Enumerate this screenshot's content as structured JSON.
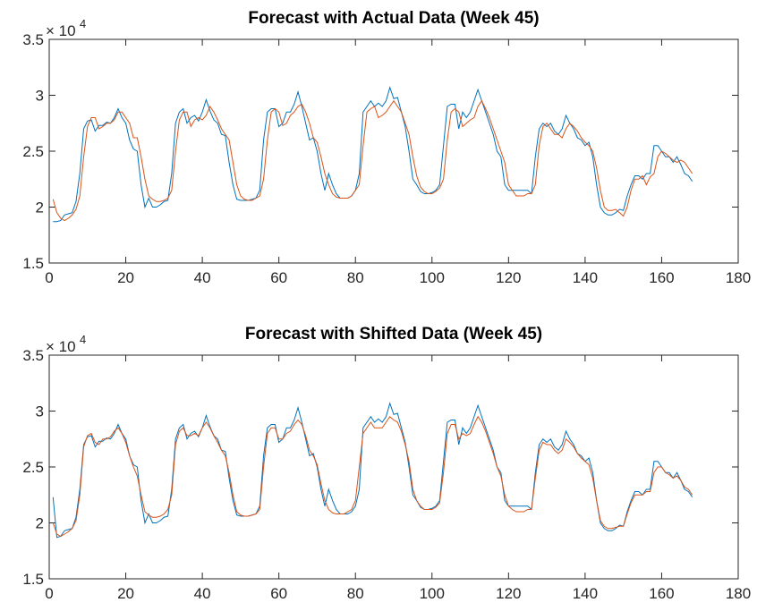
{
  "chart_data": [
    {
      "type": "line",
      "title": "Forecast with Actual Data (Week 45)",
      "y_exponent": {
        "base": "× 10",
        "power": "4"
      },
      "x": [
        1,
        2,
        3,
        4,
        5,
        6,
        7,
        8,
        9,
        10,
        11,
        12,
        13,
        14,
        15,
        16,
        17,
        18,
        19,
        20,
        21,
        22,
        23,
        24,
        25,
        26,
        27,
        28,
        29,
        30,
        31,
        32,
        33,
        34,
        35,
        36,
        37,
        38,
        39,
        40,
        41,
        42,
        43,
        44,
        45,
        46,
        47,
        48,
        49,
        50,
        51,
        52,
        53,
        54,
        55,
        56,
        57,
        58,
        59,
        60,
        61,
        62,
        63,
        64,
        65,
        66,
        67,
        68,
        69,
        70,
        71,
        72,
        73,
        74,
        75,
        76,
        77,
        78,
        79,
        80,
        81,
        82,
        83,
        84,
        85,
        86,
        87,
        88,
        89,
        90,
        91,
        92,
        93,
        94,
        95,
        96,
        97,
        98,
        99,
        100,
        101,
        102,
        103,
        104,
        105,
        106,
        107,
        108,
        109,
        110,
        111,
        112,
        113,
        114,
        115,
        116,
        117,
        118,
        119,
        120,
        121,
        122,
        123,
        124,
        125,
        126,
        127,
        128,
        129,
        130,
        131,
        132,
        133,
        134,
        135,
        136,
        137,
        138,
        139,
        140,
        141,
        142,
        143,
        144,
        145,
        146,
        147,
        148,
        149,
        150,
        151,
        152,
        153,
        154,
        155,
        156,
        157,
        158,
        159,
        160,
        161,
        162,
        163,
        164,
        165,
        166,
        167,
        168
      ],
      "series": [
        {
          "color": "#0072bd",
          "values": [
            1.87,
            1.87,
            1.88,
            1.93,
            1.94,
            1.95,
            2.05,
            2.3,
            2.7,
            2.77,
            2.78,
            2.68,
            2.73,
            2.73,
            2.76,
            2.75,
            2.8,
            2.88,
            2.8,
            2.75,
            2.6,
            2.52,
            2.5,
            2.2,
            2.0,
            2.08,
            2.0,
            2.0,
            2.02,
            2.05,
            2.06,
            2.3,
            2.75,
            2.85,
            2.88,
            2.75,
            2.8,
            2.82,
            2.77,
            2.85,
            2.96,
            2.86,
            2.78,
            2.75,
            2.65,
            2.64,
            2.4,
            2.2,
            2.07,
            2.06,
            2.06,
            2.06,
            2.07,
            2.08,
            2.15,
            2.6,
            2.85,
            2.88,
            2.88,
            2.72,
            2.75,
            2.85,
            2.85,
            2.92,
            3.03,
            2.9,
            2.75,
            2.6,
            2.62,
            2.5,
            2.3,
            2.15,
            2.3,
            2.2,
            2.12,
            2.08,
            2.08,
            2.08,
            2.1,
            2.15,
            2.3,
            2.85,
            2.9,
            2.95,
            2.9,
            2.93,
            2.9,
            2.95,
            3.07,
            2.97,
            2.98,
            2.85,
            2.72,
            2.5,
            2.25,
            2.2,
            2.14,
            2.12,
            2.12,
            2.13,
            2.15,
            2.2,
            2.55,
            2.9,
            2.92,
            2.92,
            2.7,
            2.85,
            2.8,
            2.85,
            2.95,
            3.05,
            2.95,
            2.85,
            2.75,
            2.65,
            2.5,
            2.45,
            2.2,
            2.15,
            2.15,
            2.15,
            2.15,
            2.15,
            2.15,
            2.12,
            2.45,
            2.7,
            2.75,
            2.72,
            2.75,
            2.68,
            2.65,
            2.7,
            2.82,
            2.75,
            2.7,
            2.62,
            2.6,
            2.55,
            2.58,
            2.45,
            2.2,
            2.0,
            1.95,
            1.93,
            1.93,
            1.95,
            1.98,
            1.97,
            2.1,
            2.2,
            2.28,
            2.28,
            2.25,
            2.3,
            2.3,
            2.55,
            2.55,
            2.5,
            2.45,
            2.45,
            2.4,
            2.45,
            2.38,
            2.3,
            2.28,
            2.23
          ]
        },
        {
          "color": "#d95319",
          "values": [
            2.07,
            1.95,
            1.9,
            1.88,
            1.9,
            1.93,
            1.98,
            2.1,
            2.45,
            2.72,
            2.8,
            2.8,
            2.7,
            2.72,
            2.75,
            2.75,
            2.78,
            2.85,
            2.85,
            2.8,
            2.75,
            2.62,
            2.62,
            2.45,
            2.25,
            2.1,
            2.07,
            2.05,
            2.05,
            2.06,
            2.08,
            2.15,
            2.5,
            2.78,
            2.85,
            2.85,
            2.72,
            2.78,
            2.8,
            2.78,
            2.82,
            2.9,
            2.85,
            2.78,
            2.7,
            2.65,
            2.6,
            2.4,
            2.2,
            2.1,
            2.07,
            2.06,
            2.06,
            2.08,
            2.1,
            2.25,
            2.6,
            2.85,
            2.88,
            2.85,
            2.73,
            2.75,
            2.82,
            2.85,
            2.9,
            2.92,
            2.85,
            2.75,
            2.62,
            2.58,
            2.45,
            2.3,
            2.2,
            2.12,
            2.09,
            2.08,
            2.08,
            2.08,
            2.1,
            2.15,
            2.2,
            2.55,
            2.85,
            2.88,
            2.9,
            2.8,
            2.82,
            2.85,
            2.9,
            2.95,
            2.9,
            2.85,
            2.75,
            2.65,
            2.45,
            2.28,
            2.18,
            2.14,
            2.12,
            2.12,
            2.14,
            2.17,
            2.25,
            2.6,
            2.85,
            2.88,
            2.85,
            2.72,
            2.75,
            2.78,
            2.8,
            2.9,
            2.95,
            2.88,
            2.8,
            2.7,
            2.6,
            2.5,
            2.4,
            2.2,
            2.15,
            2.1,
            2.1,
            2.1,
            2.12,
            2.12,
            2.2,
            2.55,
            2.72,
            2.75,
            2.7,
            2.65,
            2.65,
            2.62,
            2.7,
            2.75,
            2.72,
            2.68,
            2.62,
            2.58,
            2.55,
            2.5,
            2.35,
            2.15,
            2.0,
            1.97,
            1.97,
            1.98,
            1.95,
            1.92,
            2.0,
            2.15,
            2.25,
            2.25,
            2.28,
            2.2,
            2.27,
            2.3,
            2.45,
            2.5,
            2.48,
            2.45,
            2.42,
            2.4,
            2.42,
            2.4,
            2.35,
            2.3
          ]
        }
      ],
      "xlim": [
        0,
        180
      ],
      "xticks": [
        0,
        20,
        40,
        60,
        80,
        100,
        120,
        140,
        160,
        180
      ],
      "ylim": [
        1.5,
        3.5
      ],
      "yticks": [
        1.5,
        2,
        2.5,
        3,
        3.5
      ],
      "grid": false
    },
    {
      "type": "line",
      "title": "Forecast with Shifted Data (Week 45)",
      "y_exponent": {
        "base": "× 10",
        "power": "4"
      },
      "x": [
        1,
        2,
        3,
        4,
        5,
        6,
        7,
        8,
        9,
        10,
        11,
        12,
        13,
        14,
        15,
        16,
        17,
        18,
        19,
        20,
        21,
        22,
        23,
        24,
        25,
        26,
        27,
        28,
        29,
        30,
        31,
        32,
        33,
        34,
        35,
        36,
        37,
        38,
        39,
        40,
        41,
        42,
        43,
        44,
        45,
        46,
        47,
        48,
        49,
        50,
        51,
        52,
        53,
        54,
        55,
        56,
        57,
        58,
        59,
        60,
        61,
        62,
        63,
        64,
        65,
        66,
        67,
        68,
        69,
        70,
        71,
        72,
        73,
        74,
        75,
        76,
        77,
        78,
        79,
        80,
        81,
        82,
        83,
        84,
        85,
        86,
        87,
        88,
        89,
        90,
        91,
        92,
        93,
        94,
        95,
        96,
        97,
        98,
        99,
        100,
        101,
        102,
        103,
        104,
        105,
        106,
        107,
        108,
        109,
        110,
        111,
        112,
        113,
        114,
        115,
        116,
        117,
        118,
        119,
        120,
        121,
        122,
        123,
        124,
        125,
        126,
        127,
        128,
        129,
        130,
        131,
        132,
        133,
        134,
        135,
        136,
        137,
        138,
        139,
        140,
        141,
        142,
        143,
        144,
        145,
        146,
        147,
        148,
        149,
        150,
        151,
        152,
        153,
        154,
        155,
        156,
        157,
        158,
        159,
        160,
        161,
        162,
        163,
        164,
        165,
        166,
        167,
        168
      ],
      "series": [
        {
          "color": "#0072bd",
          "values": [
            2.23,
            1.87,
            1.88,
            1.93,
            1.94,
            1.95,
            2.05,
            2.3,
            2.7,
            2.77,
            2.78,
            2.68,
            2.73,
            2.73,
            2.76,
            2.75,
            2.8,
            2.88,
            2.8,
            2.75,
            2.6,
            2.52,
            2.5,
            2.2,
            2.0,
            2.08,
            2.0,
            2.0,
            2.02,
            2.05,
            2.06,
            2.3,
            2.75,
            2.85,
            2.88,
            2.75,
            2.8,
            2.82,
            2.77,
            2.85,
            2.96,
            2.86,
            2.78,
            2.75,
            2.65,
            2.64,
            2.4,
            2.2,
            2.07,
            2.06,
            2.06,
            2.06,
            2.07,
            2.08,
            2.15,
            2.6,
            2.85,
            2.88,
            2.88,
            2.72,
            2.75,
            2.85,
            2.85,
            2.92,
            3.03,
            2.9,
            2.75,
            2.6,
            2.62,
            2.5,
            2.3,
            2.15,
            2.3,
            2.2,
            2.12,
            2.08,
            2.08,
            2.08,
            2.1,
            2.15,
            2.3,
            2.85,
            2.9,
            2.95,
            2.9,
            2.93,
            2.9,
            2.95,
            3.07,
            2.97,
            2.98,
            2.85,
            2.72,
            2.5,
            2.25,
            2.2,
            2.14,
            2.12,
            2.12,
            2.13,
            2.15,
            2.2,
            2.55,
            2.9,
            2.92,
            2.92,
            2.7,
            2.85,
            2.8,
            2.85,
            2.95,
            3.05,
            2.95,
            2.85,
            2.75,
            2.65,
            2.5,
            2.45,
            2.2,
            2.15,
            2.15,
            2.15,
            2.15,
            2.15,
            2.15,
            2.12,
            2.45,
            2.7,
            2.75,
            2.72,
            2.75,
            2.68,
            2.65,
            2.7,
            2.82,
            2.75,
            2.7,
            2.62,
            2.6,
            2.55,
            2.58,
            2.45,
            2.2,
            2.0,
            1.95,
            1.93,
            1.93,
            1.95,
            1.98,
            1.97,
            2.1,
            2.2,
            2.28,
            2.28,
            2.25,
            2.3,
            2.3,
            2.55,
            2.55,
            2.5,
            2.45,
            2.45,
            2.4,
            2.45,
            2.38,
            2.3,
            2.28,
            2.23
          ]
        },
        {
          "color": "#d95319",
          "values": [
            2.0,
            1.9,
            1.88,
            1.9,
            1.92,
            1.95,
            2.02,
            2.25,
            2.68,
            2.78,
            2.8,
            2.72,
            2.7,
            2.75,
            2.75,
            2.77,
            2.82,
            2.85,
            2.8,
            2.72,
            2.6,
            2.5,
            2.42,
            2.25,
            2.1,
            2.07,
            2.05,
            2.05,
            2.06,
            2.08,
            2.12,
            2.25,
            2.7,
            2.82,
            2.85,
            2.78,
            2.78,
            2.8,
            2.78,
            2.85,
            2.9,
            2.85,
            2.78,
            2.72,
            2.65,
            2.6,
            2.45,
            2.25,
            2.1,
            2.07,
            2.06,
            2.06,
            2.07,
            2.08,
            2.12,
            2.5,
            2.8,
            2.85,
            2.85,
            2.75,
            2.75,
            2.8,
            2.82,
            2.88,
            2.92,
            2.88,
            2.78,
            2.65,
            2.6,
            2.52,
            2.35,
            2.2,
            2.12,
            2.09,
            2.08,
            2.08,
            2.08,
            2.1,
            2.12,
            2.2,
            2.5,
            2.8,
            2.85,
            2.9,
            2.85,
            2.85,
            2.85,
            2.9,
            2.95,
            2.92,
            2.9,
            2.82,
            2.7,
            2.55,
            2.3,
            2.2,
            2.15,
            2.12,
            2.12,
            2.12,
            2.14,
            2.18,
            2.45,
            2.8,
            2.88,
            2.88,
            2.75,
            2.8,
            2.78,
            2.8,
            2.88,
            2.95,
            2.9,
            2.82,
            2.72,
            2.62,
            2.5,
            2.42,
            2.25,
            2.15,
            2.12,
            2.1,
            2.1,
            2.1,
            2.12,
            2.12,
            2.4,
            2.65,
            2.72,
            2.7,
            2.7,
            2.65,
            2.62,
            2.65,
            2.75,
            2.72,
            2.68,
            2.62,
            2.58,
            2.55,
            2.52,
            2.4,
            2.2,
            2.02,
            1.97,
            1.95,
            1.95,
            1.96,
            1.97,
            1.97,
            2.08,
            2.18,
            2.25,
            2.25,
            2.25,
            2.28,
            2.28,
            2.45,
            2.5,
            2.5,
            2.45,
            2.43,
            2.4,
            2.42,
            2.38,
            2.32,
            2.3,
            2.25
          ]
        }
      ],
      "xlim": [
        0,
        180
      ],
      "xticks": [
        0,
        20,
        40,
        60,
        80,
        100,
        120,
        140,
        160,
        180
      ],
      "ylim": [
        1.5,
        3.5
      ],
      "yticks": [
        1.5,
        2,
        2.5,
        3,
        3.5
      ],
      "grid": false
    }
  ]
}
